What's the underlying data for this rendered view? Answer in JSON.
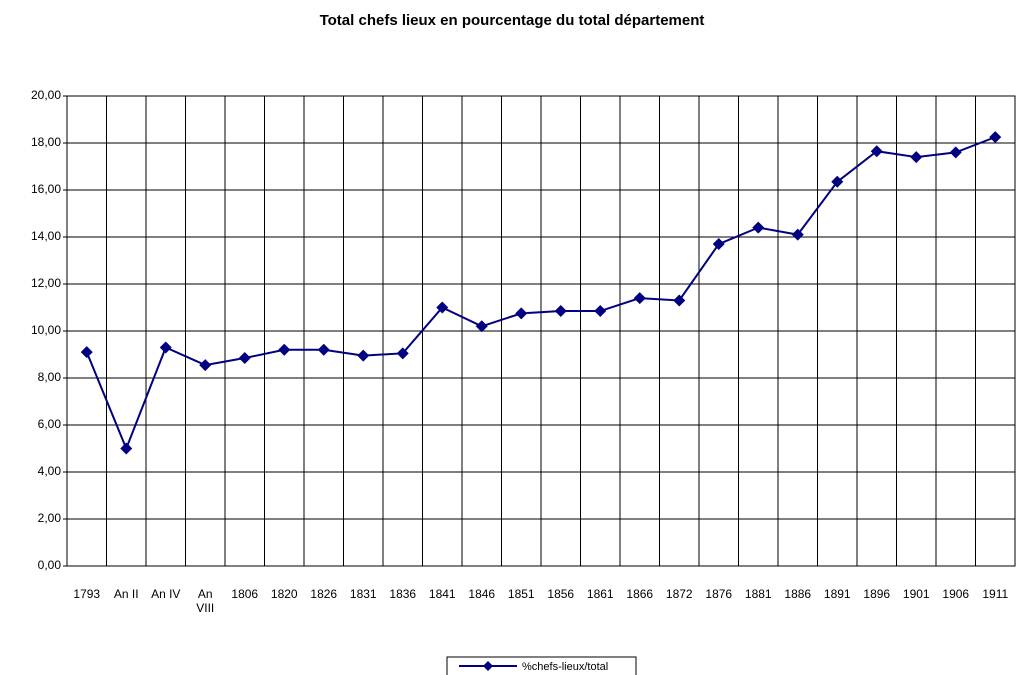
{
  "chart_data": {
    "type": "line",
    "title": "Total chefs lieux en pourcentage du total département",
    "categories": [
      "1793",
      "An II",
      "An IV",
      "An VIII",
      "1806",
      "1820",
      "1826",
      "1831",
      "1836",
      "1841",
      "1846",
      "1851",
      "1856",
      "1861",
      "1866",
      "1872",
      "1876",
      "1881",
      "1886",
      "1891",
      "1896",
      "1901",
      "1906",
      "1911"
    ],
    "series": [
      {
        "name": "%chefs-lieux/total",
        "color": "#000080",
        "values": [
          9.1,
          5.0,
          9.3,
          8.55,
          8.85,
          9.2,
          9.2,
          8.95,
          9.05,
          11.0,
          10.2,
          10.75,
          10.85,
          10.85,
          11.4,
          11.3,
          13.7,
          14.4,
          14.1,
          16.35,
          17.65,
          17.4,
          17.6,
          18.25
        ]
      }
    ],
    "ylim": [
      0,
      20
    ],
    "yticks": [
      {
        "value": 0,
        "label": "0,00"
      },
      {
        "value": 2,
        "label": "2,00"
      },
      {
        "value": 4,
        "label": "4,00"
      },
      {
        "value": 6,
        "label": "6,00"
      },
      {
        "value": 8,
        "label": "8,00"
      },
      {
        "value": 10,
        "label": "10,00"
      },
      {
        "value": 12,
        "label": "12,00"
      },
      {
        "value": 14,
        "label": "14,00"
      },
      {
        "value": 16,
        "label": "16,00"
      },
      {
        "value": 18,
        "label": "18,00"
      },
      {
        "value": 20,
        "label": "20,00"
      }
    ],
    "grid": true,
    "legend": "bottom"
  }
}
